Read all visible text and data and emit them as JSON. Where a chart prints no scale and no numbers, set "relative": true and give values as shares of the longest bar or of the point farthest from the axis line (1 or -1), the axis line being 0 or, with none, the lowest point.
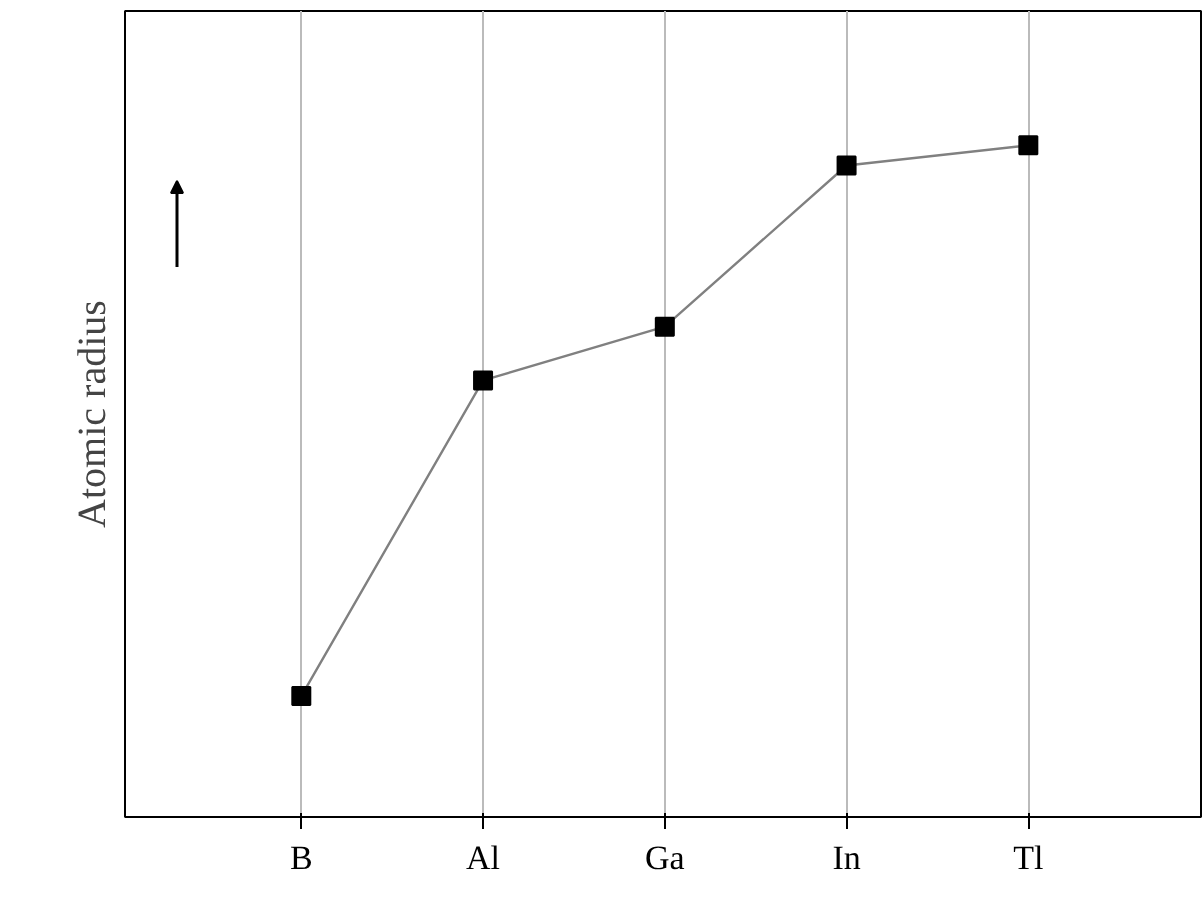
{
  "chart_data": {
    "type": "line",
    "ylabel": "Atomic radius",
    "relative": true,
    "categories": [
      "B",
      "Al",
      "Ga",
      "In",
      "Tl"
    ],
    "series": [
      {
        "color": "#808080",
        "values": [
          0.18,
          0.65,
          0.73,
          0.97,
          1.0
        ]
      }
    ],
    "marker": "square",
    "grid": "x",
    "line_style": "solid"
  }
}
